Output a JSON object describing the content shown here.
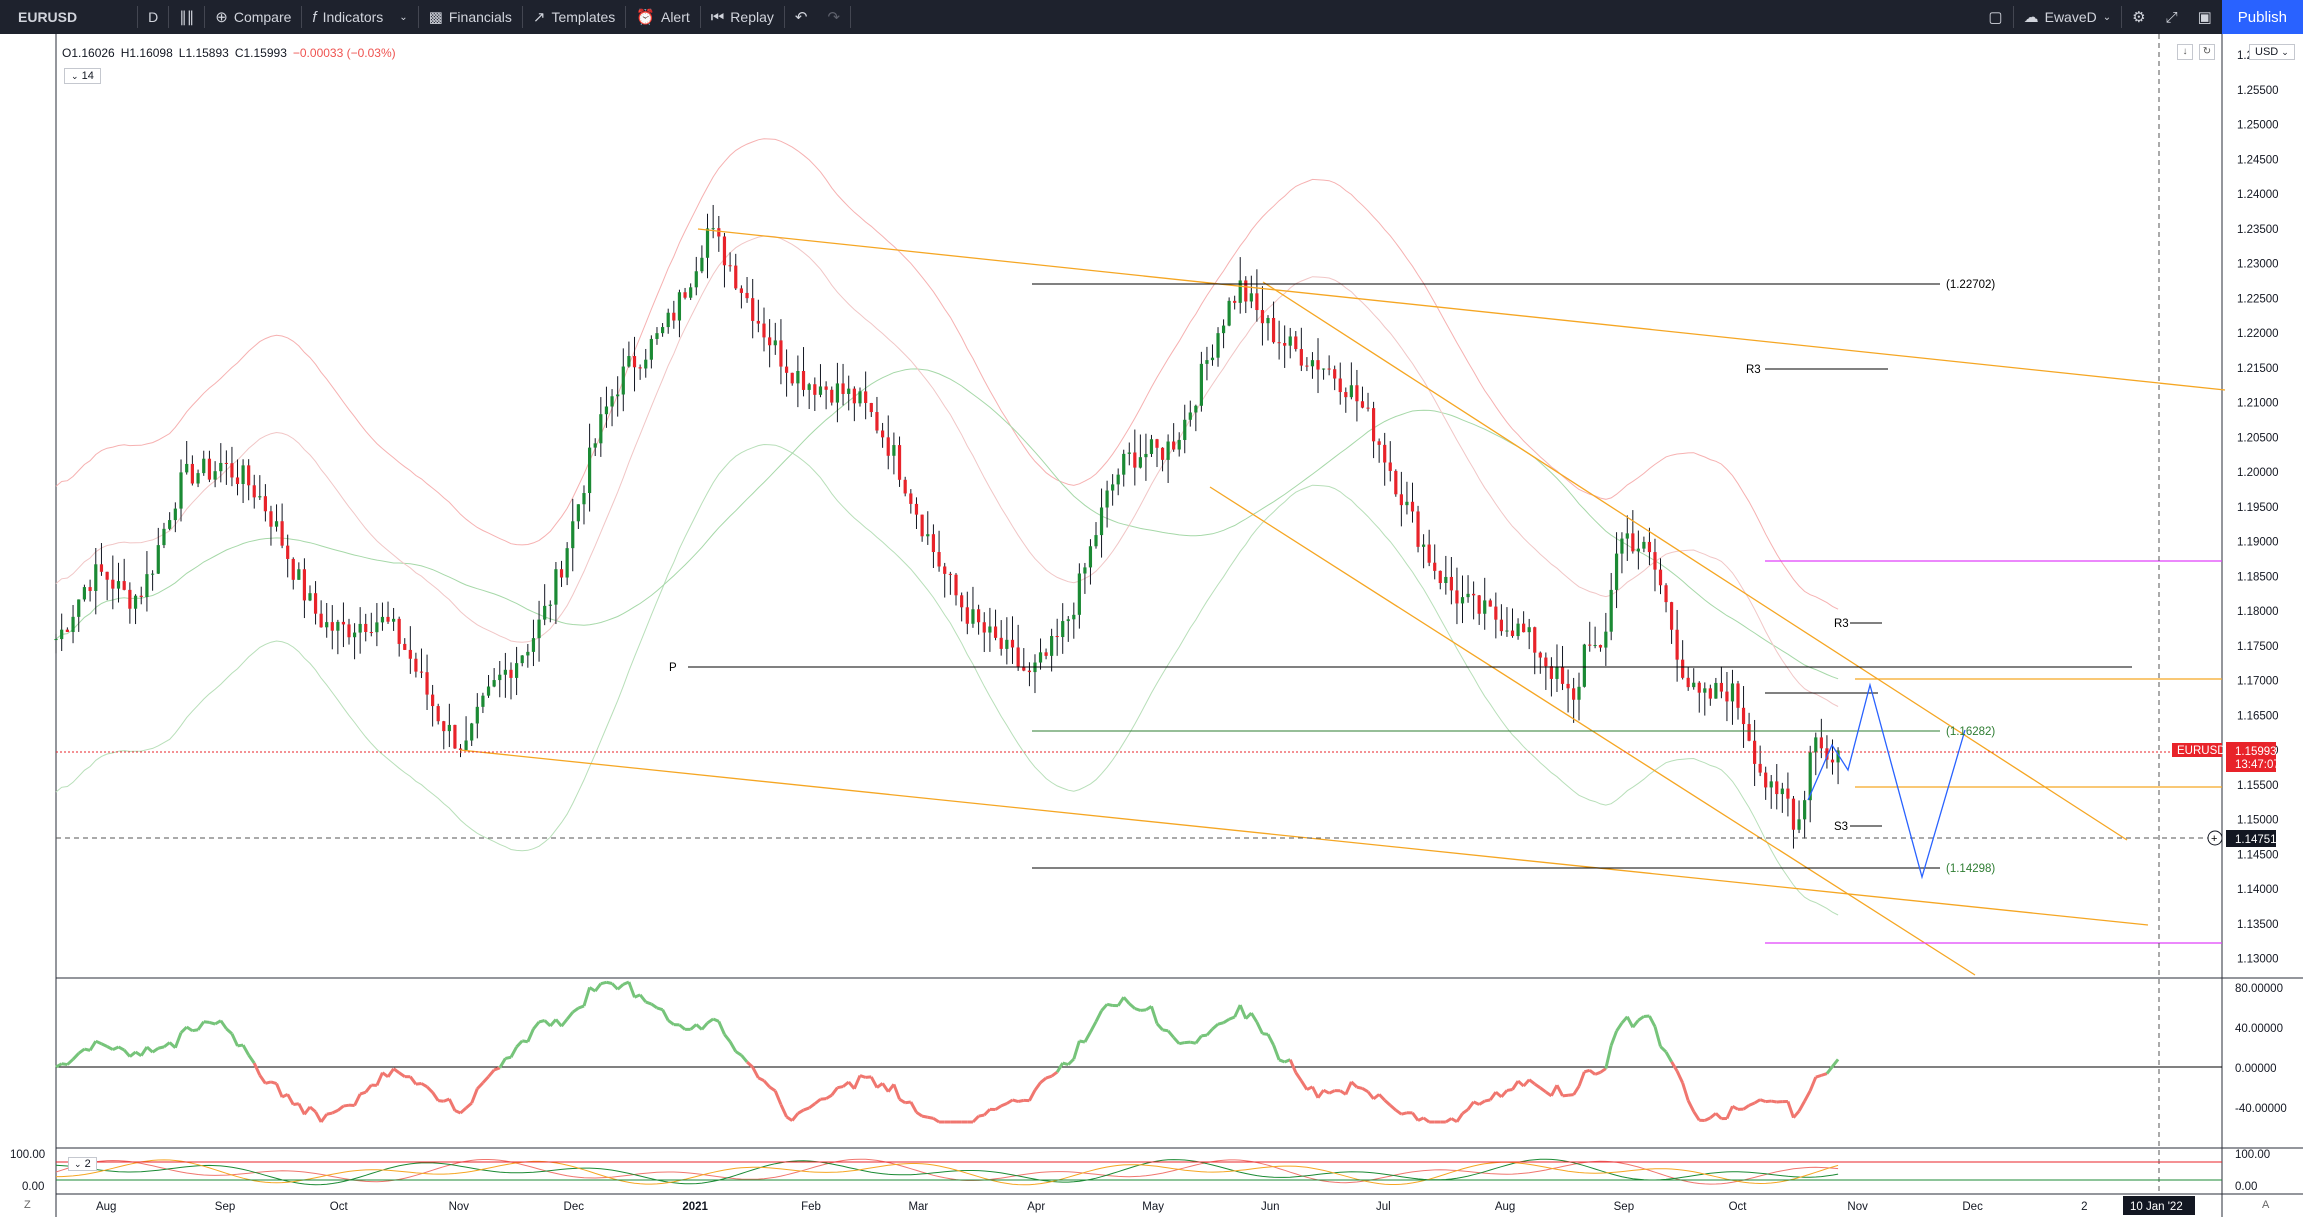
{
  "toolbar": {
    "symbol": "EURUSD",
    "interval": "D",
    "compare_label": "Compare",
    "indicators_label": "Indicators",
    "financials_label": "Financials",
    "templates_label": "Templates",
    "alert_label": "Alert",
    "replay_label": "Replay",
    "layout_name": "EwaveD",
    "publish_label": "Publish"
  },
  "legend": {
    "open": "O1.16026",
    "high": "H1.16098",
    "low": "L1.15893",
    "close": "C1.15993",
    "change": "−0.00033 (−0.03%)",
    "interval_input": "14",
    "oscillator_input": "2"
  },
  "currency": "USD",
  "price_axis": {
    "ticks": [
      "1.26000",
      "1.25500",
      "1.25000",
      "1.24500",
      "1.24000",
      "1.23500",
      "1.23000",
      "1.22500",
      "1.22000",
      "1.21500",
      "1.21000",
      "1.20500",
      "1.20000",
      "1.19500",
      "1.19000",
      "1.18500",
      "1.18000",
      "1.17500",
      "1.17000",
      "1.16500",
      "1.16000",
      "1.15500",
      "1.15000",
      "1.14500",
      "1.14000",
      "1.13500",
      "1.13000"
    ],
    "last_price_symbol": "EURUSD",
    "last_price": "1.15993",
    "countdown": "13:47:07",
    "crosshair_price": "1.14751",
    "top_tick": "1.2"
  },
  "osc_axis": {
    "ticks": [
      "80.00000",
      "40.00000",
      "0.00000",
      "-40.00000"
    ]
  },
  "osc2_axis": {
    "ticks": [
      "100.00",
      "0.00"
    ],
    "right_ticks": [
      "100.00",
      "0.00"
    ]
  },
  "time_axis": {
    "labels": [
      "Aug",
      "Sep",
      "Oct",
      "Nov",
      "Dec",
      "2021",
      "Feb",
      "Mar",
      "Apr",
      "May",
      "Jun",
      "Jul",
      "Aug",
      "Sep",
      "Oct",
      "Nov",
      "Dec",
      "2"
    ],
    "crosshair_date": "10 Jan '22",
    "corner_left": "Z",
    "corner_right": "A"
  },
  "annotations": {
    "fib_top": "(1.22702)",
    "fib_mid": "(1.16282)",
    "fib_low": "(1.14298)",
    "pivot_p": "P",
    "r3_upper": "R3",
    "r3_lower": "R3",
    "s3": "S3"
  },
  "colors": {
    "up": "#1b8a34",
    "down": "#e8232a",
    "channel": "#f5a623",
    "pivot": "#000000",
    "magenta": "#e040fb",
    "projection": "#2962ff",
    "osc_up": "#76c47a",
    "osc_down": "#f0766f",
    "price_tag": "#e8232a"
  },
  "chart_data": {
    "type": "candlestick",
    "x_range": [
      "2020-07-20",
      "2022-01-20"
    ],
    "y_range": [
      1.1275,
      1.2625
    ],
    "last_close": 1.15993,
    "levels": {
      "fib_top": 1.22702,
      "fib_mid": 1.16282,
      "fib_low": 1.14298,
      "pivot_p": 1.172,
      "r3_upper": 1.215,
      "r3_lower": 1.178,
      "s3": 1.149,
      "magenta_upper": 1.1875,
      "magenta_lower": 1.1325,
      "crosshair": 1.14751
    },
    "key_points": [
      {
        "x": "2020-09-01",
        "y": 1.2011
      },
      {
        "x": "2020-11-04",
        "y": 1.1603
      },
      {
        "x": "2021-01-06",
        "y": 1.2349
      },
      {
        "x": "2021-03-31",
        "y": 1.1704
      },
      {
        "x": "2021-05-25",
        "y": 1.2266
      },
      {
        "x": "2021-08-20",
        "y": 1.1664
      },
      {
        "x": "2021-09-03",
        "y": 1.1909
      },
      {
        "x": "2021-10-12",
        "y": 1.1524
      },
      {
        "x": "2021-10-28",
        "y": 1.1599
      }
    ],
    "projection": [
      {
        "x": "2021-10-28",
        "y": 1.1599
      },
      {
        "x": "2021-11-08",
        "y": 1.1421
      },
      {
        "x": "2021-11-19",
        "y": 1.1628
      }
    ]
  }
}
